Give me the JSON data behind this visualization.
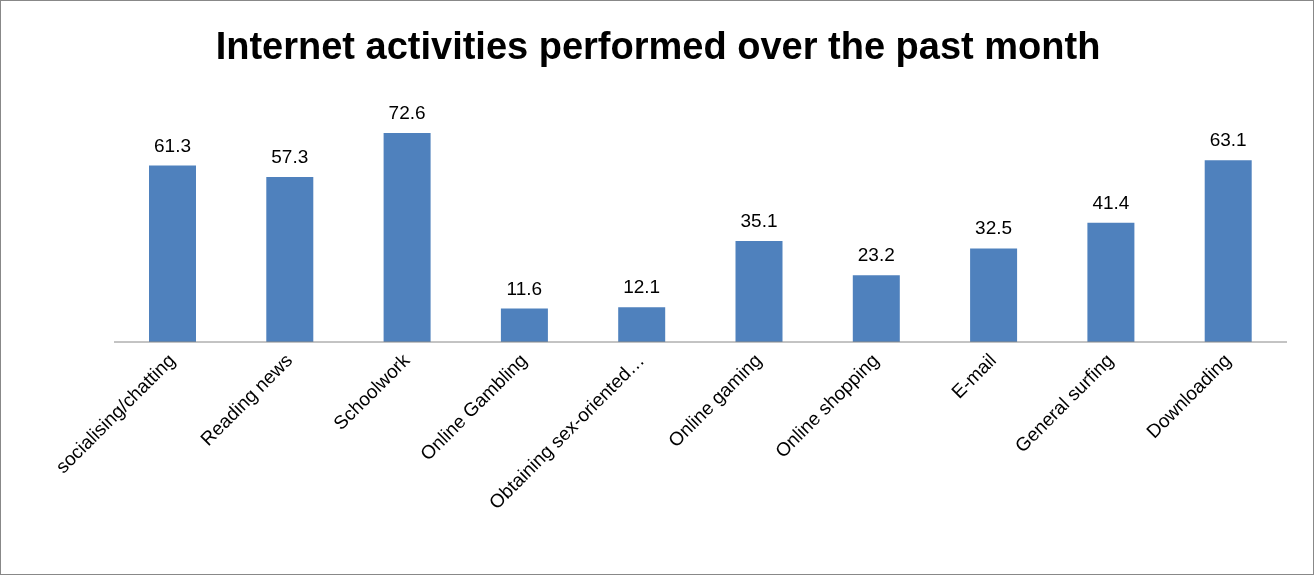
{
  "chart_data": {
    "type": "bar",
    "title": "Internet activities performed over the past month",
    "categories": [
      "socialising/chatting",
      "Reading news",
      "Schoolwork",
      "Online Gambling",
      "Obtaining sex-oriented…",
      "Online gaming",
      "Online shopping",
      "E-mail",
      "General surfing",
      "Downloading"
    ],
    "values": [
      61.3,
      57.3,
      72.6,
      11.6,
      12.1,
      35.1,
      23.2,
      32.5,
      41.4,
      63.1
    ],
    "color": "#4f81bd",
    "data_labels": true,
    "grid": false,
    "legend": false
  }
}
